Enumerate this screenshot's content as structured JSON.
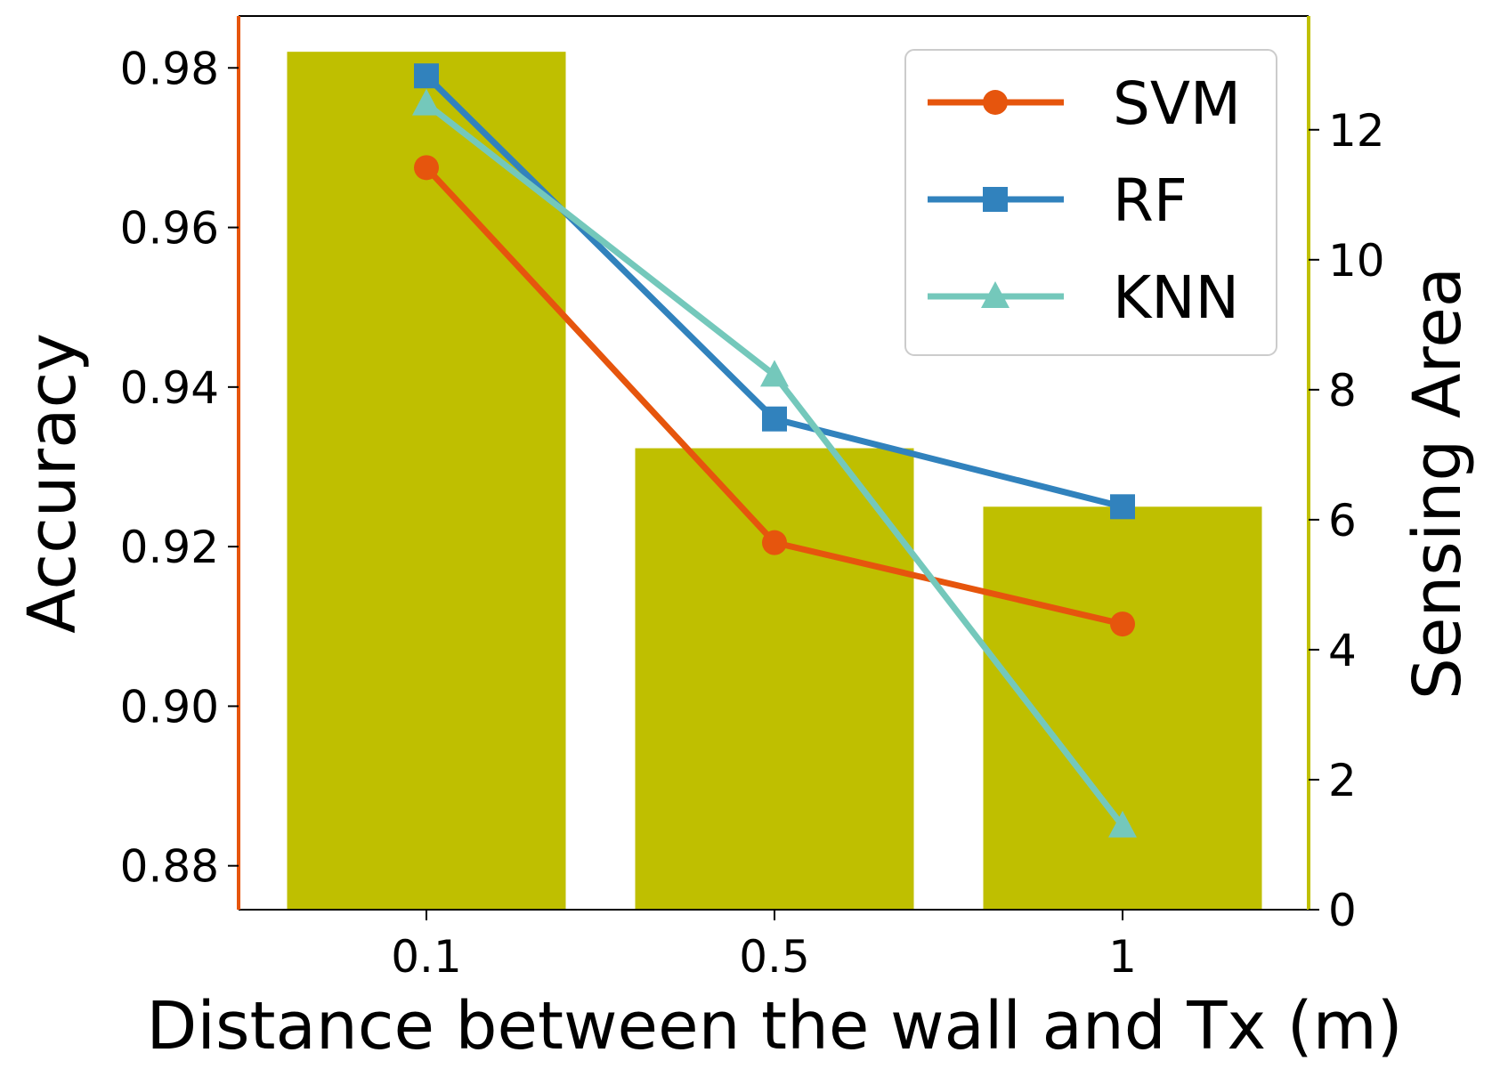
{
  "chart_data": {
    "type": "bar+line",
    "categories": [
      "0.1",
      "0.5",
      "1"
    ],
    "xlabel": "Distance between the wall and Tx (m)",
    "bars": {
      "name": "Sensing Area",
      "axis": "right",
      "values": [
        13.2,
        7.1,
        6.2
      ],
      "color": "#bfbf00"
    },
    "series": [
      {
        "name": "SVM",
        "marker": "circle",
        "color": "#e6550d",
        "values": [
          0.9675,
          0.9205,
          0.9103
        ]
      },
      {
        "name": "RF",
        "marker": "square",
        "color": "#3182bd",
        "values": [
          0.979,
          0.936,
          0.925
        ]
      },
      {
        "name": "KNN",
        "marker": "triangle",
        "color": "#74c8bb",
        "values": [
          0.9755,
          0.9415,
          0.885
        ]
      }
    ],
    "left_axis": {
      "label": "Accuracy",
      "ylim": [
        0.8745,
        0.9865
      ],
      "ticks": [
        0.88,
        0.9,
        0.92,
        0.94,
        0.96,
        0.98
      ],
      "tick_labels": [
        "0.88",
        "0.90",
        "0.92",
        "0.94",
        "0.96",
        "0.98"
      ],
      "color": "#e6550d"
    },
    "right_axis": {
      "label": "Sensing Area",
      "ylim": [
        0,
        13.75
      ],
      "ticks": [
        0,
        2,
        4,
        6,
        8,
        10,
        12
      ],
      "tick_labels": [
        "0",
        "2",
        "4",
        "6",
        "8",
        "10",
        "12"
      ],
      "color": "#bfbf00"
    },
    "legend": {
      "position": "top-right",
      "entries": [
        "SVM",
        "RF",
        "KNN"
      ]
    },
    "grid": false
  }
}
